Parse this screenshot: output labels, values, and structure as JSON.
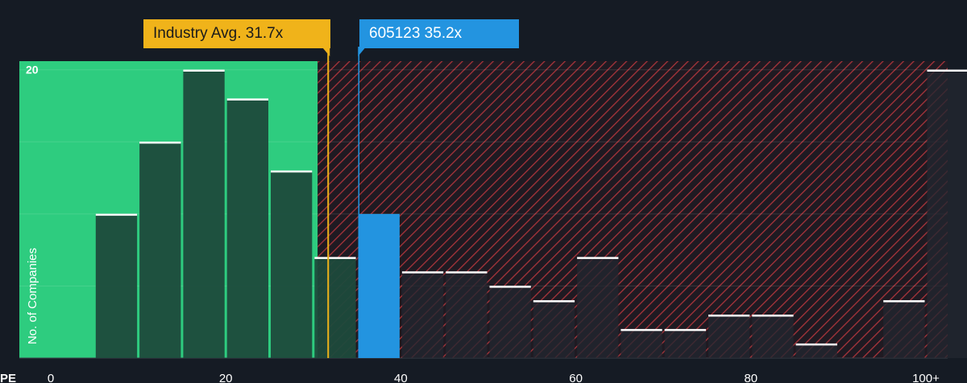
{
  "chart_data": {
    "type": "bar",
    "xlabel": "PE",
    "ylabel": "No. of Companies",
    "xlim": [
      0,
      100
    ],
    "ylim": [
      0,
      20.6
    ],
    "x_ticks": [
      {
        "value": 0,
        "label": "0"
      },
      {
        "value": 20,
        "label": "20"
      },
      {
        "value": 40,
        "label": "40"
      },
      {
        "value": 60,
        "label": "60"
      },
      {
        "value": 80,
        "label": "80"
      },
      {
        "value": 100,
        "label": "100+"
      }
    ],
    "y_ticks": [
      {
        "value": 20,
        "label": "20"
      }
    ],
    "grid_y": [
      5,
      10,
      15,
      20
    ],
    "bins": [
      {
        "x0": 5,
        "x1": 10,
        "value": 10
      },
      {
        "x0": 10,
        "x1": 15,
        "value": 15
      },
      {
        "x0": 15,
        "x1": 20,
        "value": 20
      },
      {
        "x0": 20,
        "x1": 25,
        "value": 18
      },
      {
        "x0": 25,
        "x1": 30,
        "value": 13
      },
      {
        "x0": 30,
        "x1": 35,
        "value": 7
      },
      {
        "x0": 35,
        "x1": 40,
        "value": 10,
        "highlight": true
      },
      {
        "x0": 40,
        "x1": 45,
        "value": 6
      },
      {
        "x0": 45,
        "x1": 50,
        "value": 6
      },
      {
        "x0": 50,
        "x1": 55,
        "value": 5
      },
      {
        "x0": 55,
        "x1": 60,
        "value": 4
      },
      {
        "x0": 60,
        "x1": 65,
        "value": 7
      },
      {
        "x0": 65,
        "x1": 70,
        "value": 2
      },
      {
        "x0": 70,
        "x1": 75,
        "value": 2
      },
      {
        "x0": 75,
        "x1": 80,
        "value": 3
      },
      {
        "x0": 80,
        "x1": 85,
        "value": 3
      },
      {
        "x0": 85,
        "x1": 90,
        "value": 1
      },
      {
        "x0": 90,
        "x1": 95,
        "value": 0
      },
      {
        "x0": 95,
        "x1": 100,
        "value": 4
      },
      {
        "x0": 100,
        "x1": 105,
        "value": 20
      }
    ],
    "fair_value_below": 30.5,
    "industry_avg": {
      "label": "Industry Avg. 31.7x",
      "value": 31.7
    },
    "company": {
      "label": "605123 35.2x",
      "value": 35.2
    },
    "colors": {
      "background": "#151b24",
      "fair_zone": "#2ecc7f",
      "fair_bar": "#1d4a3c",
      "expensive_bar": "#232730",
      "hatch": "#c0393f",
      "industry": "#f0b31a",
      "company": "#2394e0",
      "bar_cap": "#ffffff",
      "axis_text": "#ffffff",
      "grid": "#ffffff"
    }
  }
}
